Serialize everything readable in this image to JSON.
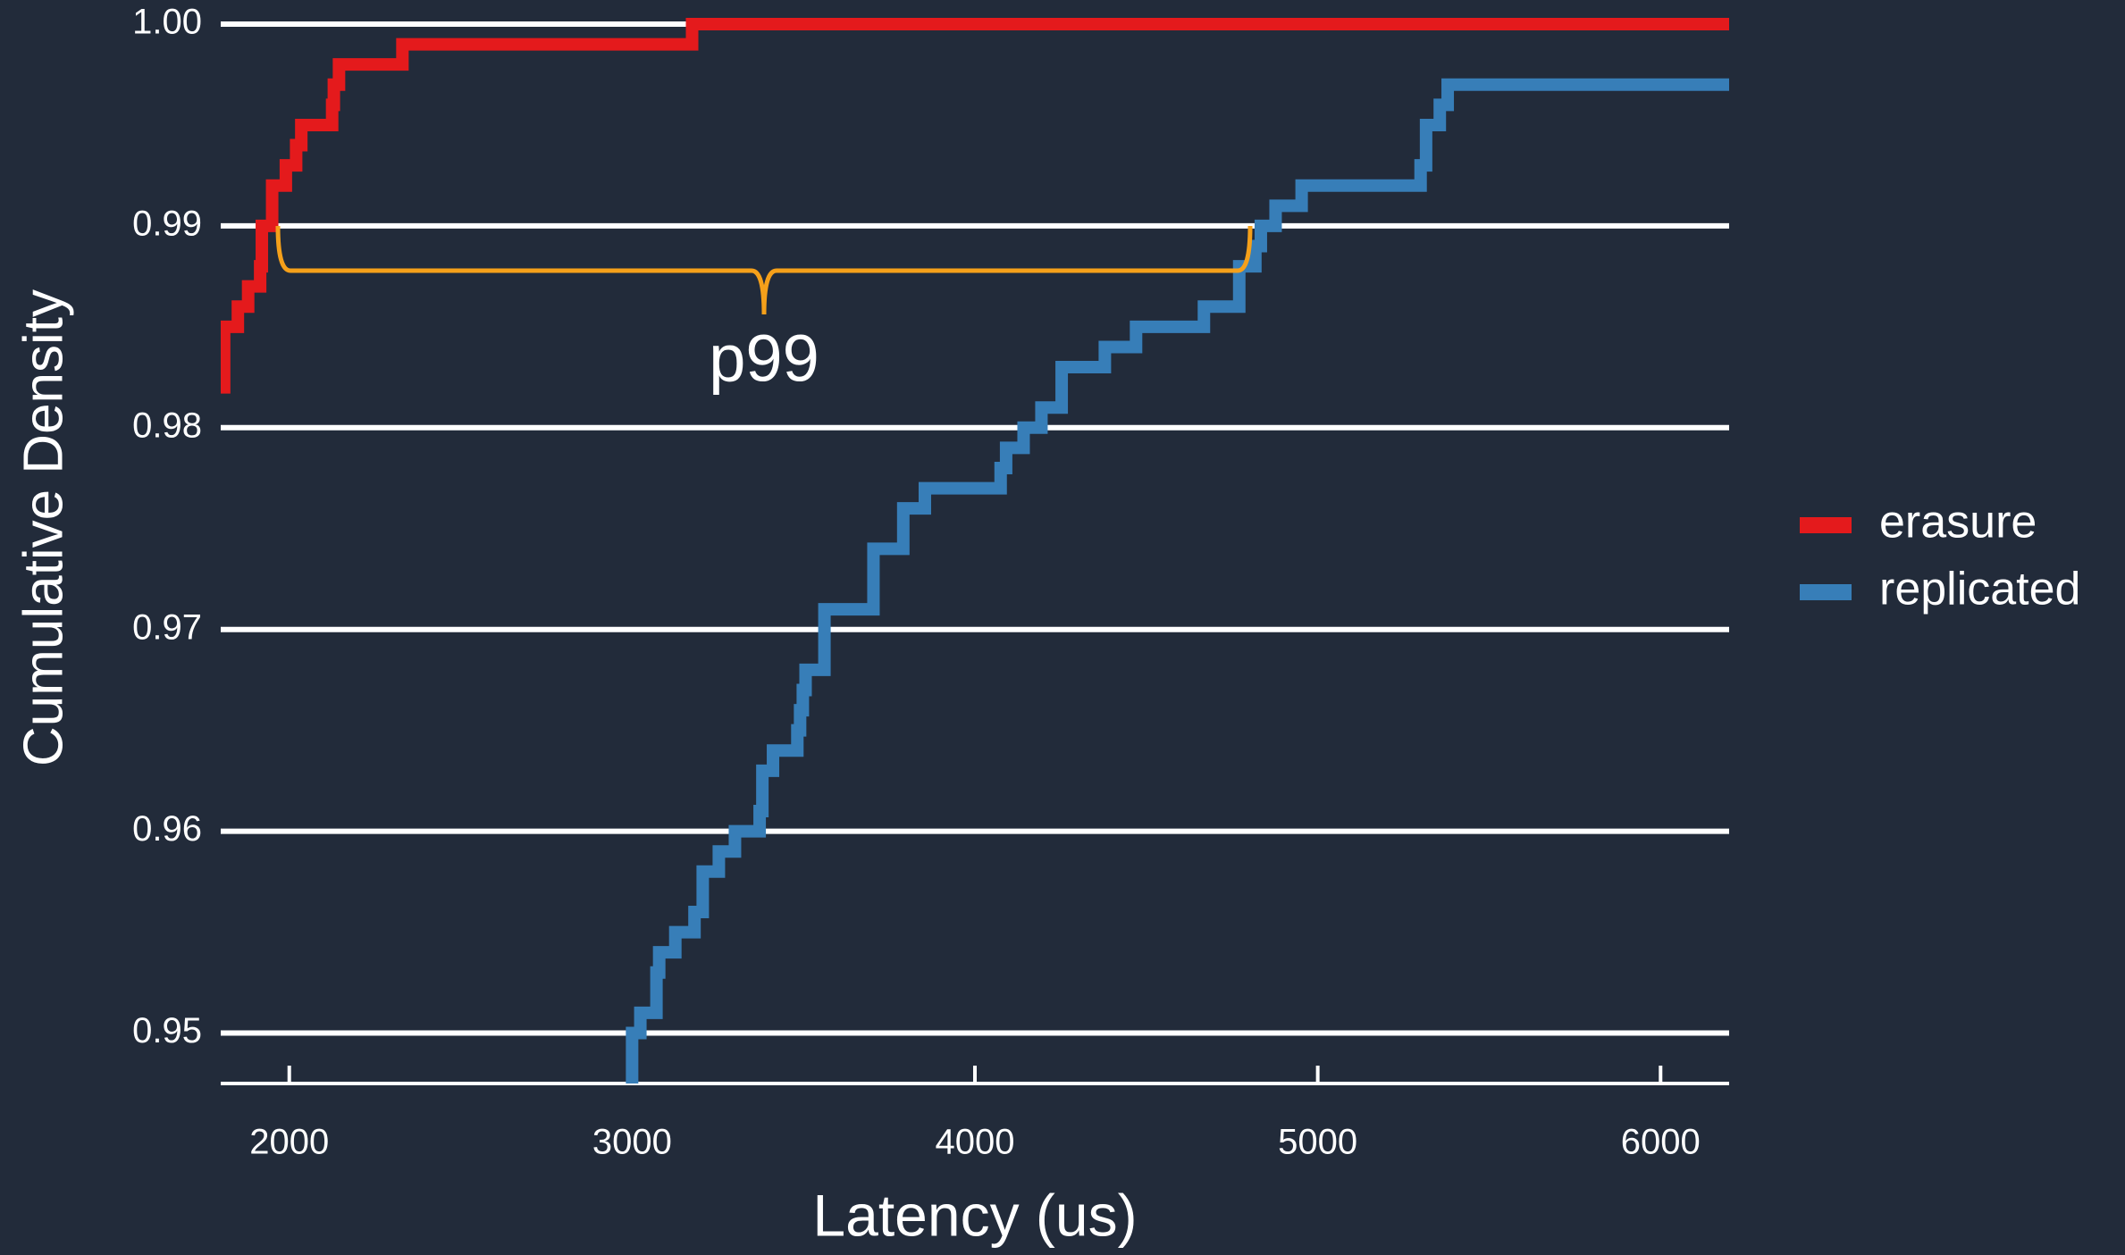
{
  "chart_data": {
    "type": "step",
    "xlabel": "Latency (us)",
    "ylabel": "Cumulative Density",
    "xlim": [
      1800,
      6200
    ],
    "ylim": [
      0.9475,
      1.0
    ],
    "xticks": [
      2000,
      3000,
      4000,
      5000,
      6000
    ],
    "yticks": [
      0.95,
      0.96,
      0.97,
      0.98,
      0.99,
      {
        "value": 1,
        "label": "1.00"
      }
    ],
    "grid": true,
    "legend": "right",
    "annotation": "p99",
    "series": [
      {
        "name": "erasure",
        "color": "#e41a1c",
        "x": [
          1800,
          1810,
          1850,
          1880,
          1915,
          1920,
          1950,
          1990,
          2020,
          2035,
          2125,
          2130,
          2145,
          2330,
          3175,
          6200
        ],
        "values": [
          0.982,
          0.985,
          0.986,
          0.987,
          0.988,
          0.99,
          0.992,
          0.993,
          0.994,
          0.995,
          0.996,
          0.997,
          0.998,
          0.999,
          1.0,
          1.0
        ]
      },
      {
        "name": "replicated",
        "color": "#377eb8",
        "x": [
          2988,
          3000,
          3024,
          3071,
          3079,
          3126,
          3182,
          3206,
          3253,
          3300,
          3372,
          3380,
          3411,
          3482,
          3490,
          3498,
          3506,
          3561,
          3704,
          3791,
          3854,
          4075,
          4091,
          4142,
          4194,
          4253,
          4379,
          4470,
          4668,
          4771,
          4818,
          4834,
          4877,
          4953,
          5300,
          5316,
          5356,
          5379,
          6200
        ],
        "values": [
          0.9475,
          0.95,
          0.951,
          0.953,
          0.954,
          0.955,
          0.956,
          0.958,
          0.959,
          0.96,
          0.961,
          0.963,
          0.964,
          0.965,
          0.966,
          0.967,
          0.968,
          0.971,
          0.974,
          0.976,
          0.977,
          0.978,
          0.979,
          0.98,
          0.981,
          0.983,
          0.984,
          0.985,
          0.986,
          0.988,
          0.989,
          0.99,
          0.991,
          0.992,
          0.993,
          0.995,
          0.996,
          0.997,
          0.997
        ]
      }
    ]
  }
}
